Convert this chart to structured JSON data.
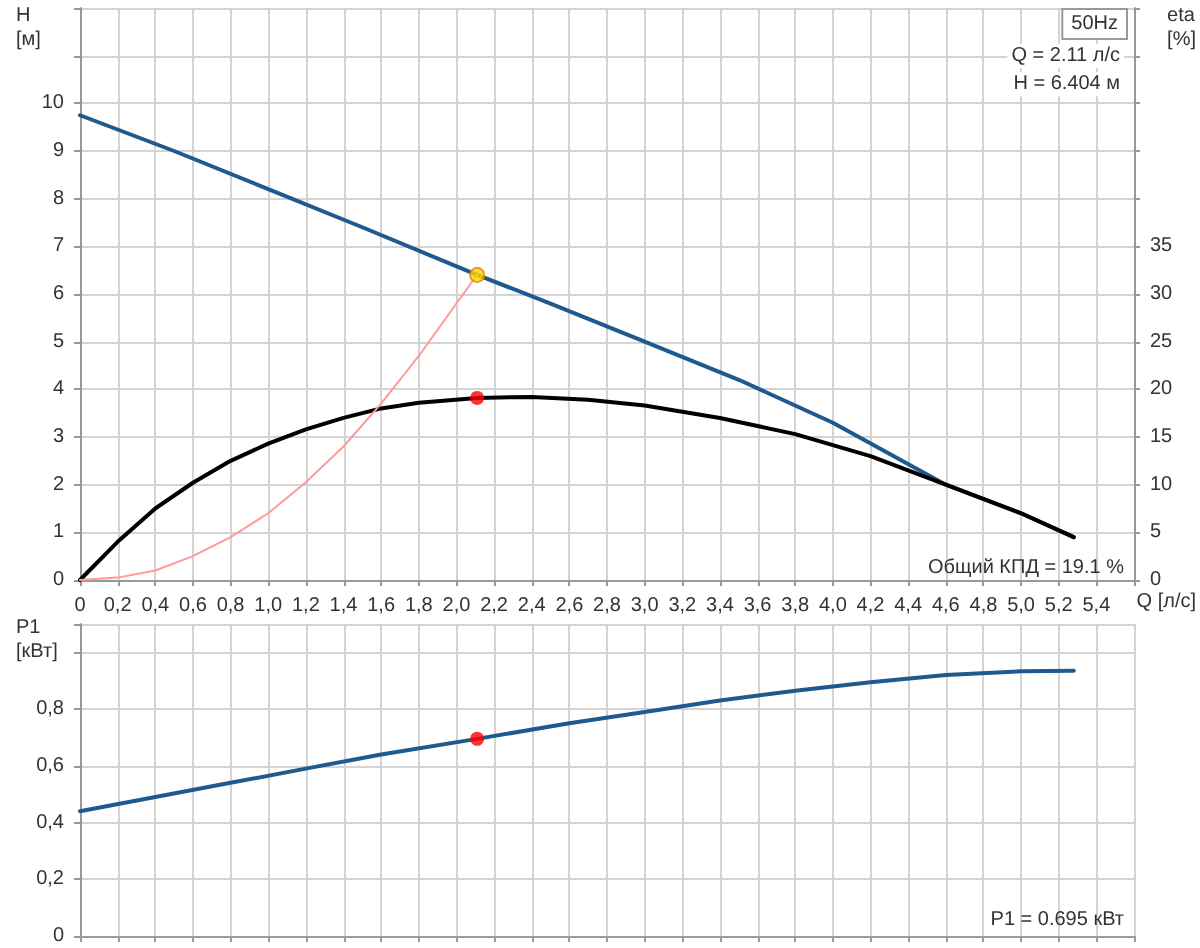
{
  "chart_data": [
    {
      "type": "line",
      "ylabel": "H\n[м]",
      "y2label": "eta\n[%]",
      "xlabel": "Q [л/с]",
      "annotations": [
        "50Hz",
        "Q = 2.11 л/с",
        "H = 6.404 м",
        "Общий КПД = 19.1 %"
      ],
      "xlim": [
        0,
        5.6
      ],
      "xticks": [
        0,
        {
          "value": 0.2,
          "label": "0,2"
        },
        {
          "value": 0.4,
          "label": "0,4"
        },
        {
          "value": 0.6,
          "label": "0,6"
        },
        {
          "value": 0.8,
          "label": "0,8"
        },
        {
          "value": 1.0,
          "label": "1,0"
        },
        {
          "value": 1.2,
          "label": "1,2"
        },
        {
          "value": 1.4,
          "label": "1,4"
        },
        {
          "value": 1.6,
          "label": "1,6"
        },
        {
          "value": 1.8,
          "label": "1,8"
        },
        {
          "value": 2.0,
          "label": "2,0"
        },
        {
          "value": 2.2,
          "label": "2,2"
        },
        {
          "value": 2.4,
          "label": "2,4"
        },
        {
          "value": 2.6,
          "label": "2,6"
        },
        {
          "value": 2.8,
          "label": "2,8"
        },
        {
          "value": 3.0,
          "label": "3,0"
        },
        {
          "value": 3.2,
          "label": "3,2"
        },
        {
          "value": 3.4,
          "label": "3,4"
        },
        {
          "value": 3.6,
          "label": "3,6"
        },
        {
          "value": 3.8,
          "label": "3,8"
        },
        {
          "value": 4.0,
          "label": "4,0"
        },
        {
          "value": 4.2,
          "label": "4,2"
        },
        {
          "value": 4.4,
          "label": "4,4"
        },
        {
          "value": 4.6,
          "label": "4,6"
        },
        {
          "value": 4.8,
          "label": "4,8"
        },
        {
          "value": 5.0,
          "label": "5,0"
        },
        {
          "value": 5.2,
          "label": "5,2"
        },
        {
          "value": 5.4,
          "label": "5,4"
        }
      ],
      "ylim": [
        0,
        12
      ],
      "yticks": [
        0,
        1,
        2,
        3,
        4,
        5,
        6,
        7,
        8,
        9,
        10,
        {
          "value": 11,
          "label": null
        }
      ],
      "y2lim": [
        0,
        60
      ],
      "y2ticks": [
        0,
        5,
        10,
        15,
        20,
        25,
        30,
        35
      ],
      "grid": true,
      "marker": "none",
      "line_style": "solid",
      "series": [
        {
          "color": "#1f5a8f",
          "x": [
            0,
            0.5,
            1.0,
            1.5,
            2.11,
            2.5,
            3.0,
            3.5,
            4.0,
            4.6,
            5.0,
            5.28
          ],
          "values": [
            9.75,
            9.0,
            8.2,
            7.4,
            6.4,
            5.8,
            5.0,
            4.2,
            3.3,
            2.0,
            1.4,
            0.9
          ]
        },
        {
          "color": "#000000",
          "axis": "y2",
          "x": [
            0,
            0.2,
            0.4,
            0.6,
            0.8,
            1.0,
            1.2,
            1.4,
            1.6,
            1.8,
            2.11,
            2.4,
            2.7,
            3.0,
            3.4,
            3.8,
            4.2,
            4.6,
            5.0,
            5.28
          ],
          "values": [
            0,
            4,
            7.5,
            10.2,
            12.5,
            14.3,
            15.8,
            17,
            18,
            18.6,
            19.1,
            19.2,
            18.9,
            18.3,
            17,
            15.3,
            13,
            10,
            7,
            4.5
          ]
        },
        {
          "color": "#ff9a9a",
          "x": [
            0,
            0.2,
            0.4,
            0.6,
            0.8,
            1.0,
            1.2,
            1.4,
            1.6,
            1.8,
            2.0,
            2.11
          ],
          "values": [
            0,
            0.05,
            0.2,
            0.5,
            0.9,
            1.4,
            2.05,
            2.8,
            3.7,
            4.7,
            5.8,
            6.4
          ]
        },
        {
          "type": "scatter",
          "marker": "circle",
          "color": "#ffd700",
          "x": [
            2.11
          ],
          "values": [
            6.4
          ]
        },
        {
          "type": "scatter",
          "marker": "circle",
          "axis": "y2",
          "color": "#ff0000",
          "x": [
            2.11
          ],
          "values": [
            19.1
          ]
        }
      ]
    },
    {
      "type": "line",
      "ylabel": "P1\n[кВт]",
      "annotations": [
        "P1 = 0.695 кВт"
      ],
      "tick_labels": "y",
      "xlim": [
        0,
        5.6
      ],
      "xticks": [
        0,
        0.2,
        0.4,
        0.6,
        0.8,
        1.0,
        1.2,
        1.4,
        1.6,
        1.8,
        2.0,
        2.2,
        2.4,
        2.6,
        2.8,
        3.0,
        3.2,
        3.4,
        3.6,
        3.8,
        4.0,
        4.2,
        4.4,
        4.6,
        4.8,
        5.0,
        5.2,
        5.4
      ],
      "ylim": [
        0,
        1.1
      ],
      "yticks": [
        0,
        {
          "value": 0.2,
          "label": "0,2"
        },
        {
          "value": 0.4,
          "label": "0,4"
        },
        {
          "value": 0.6,
          "label": "0,6"
        },
        {
          "value": 0.8,
          "label": "0,8"
        },
        {
          "value": 1.0,
          "label": null
        }
      ],
      "grid": true,
      "marker": "none",
      "line_style": "solid",
      "series": [
        {
          "color": "#1f5a8f",
          "x": [
            0,
            0.4,
            0.8,
            1.2,
            1.6,
            2.11,
            2.6,
            3.0,
            3.4,
            3.8,
            4.2,
            4.6,
            5.0,
            5.28
          ],
          "values": [
            0.44,
            0.49,
            0.54,
            0.59,
            0.64,
            0.695,
            0.75,
            0.79,
            0.83,
            0.865,
            0.895,
            0.92,
            0.933,
            0.935
          ]
        },
        {
          "type": "scatter",
          "marker": "circle",
          "color": "#ff0000",
          "x": [
            2.11
          ],
          "values": [
            0.695
          ]
        }
      ]
    }
  ]
}
